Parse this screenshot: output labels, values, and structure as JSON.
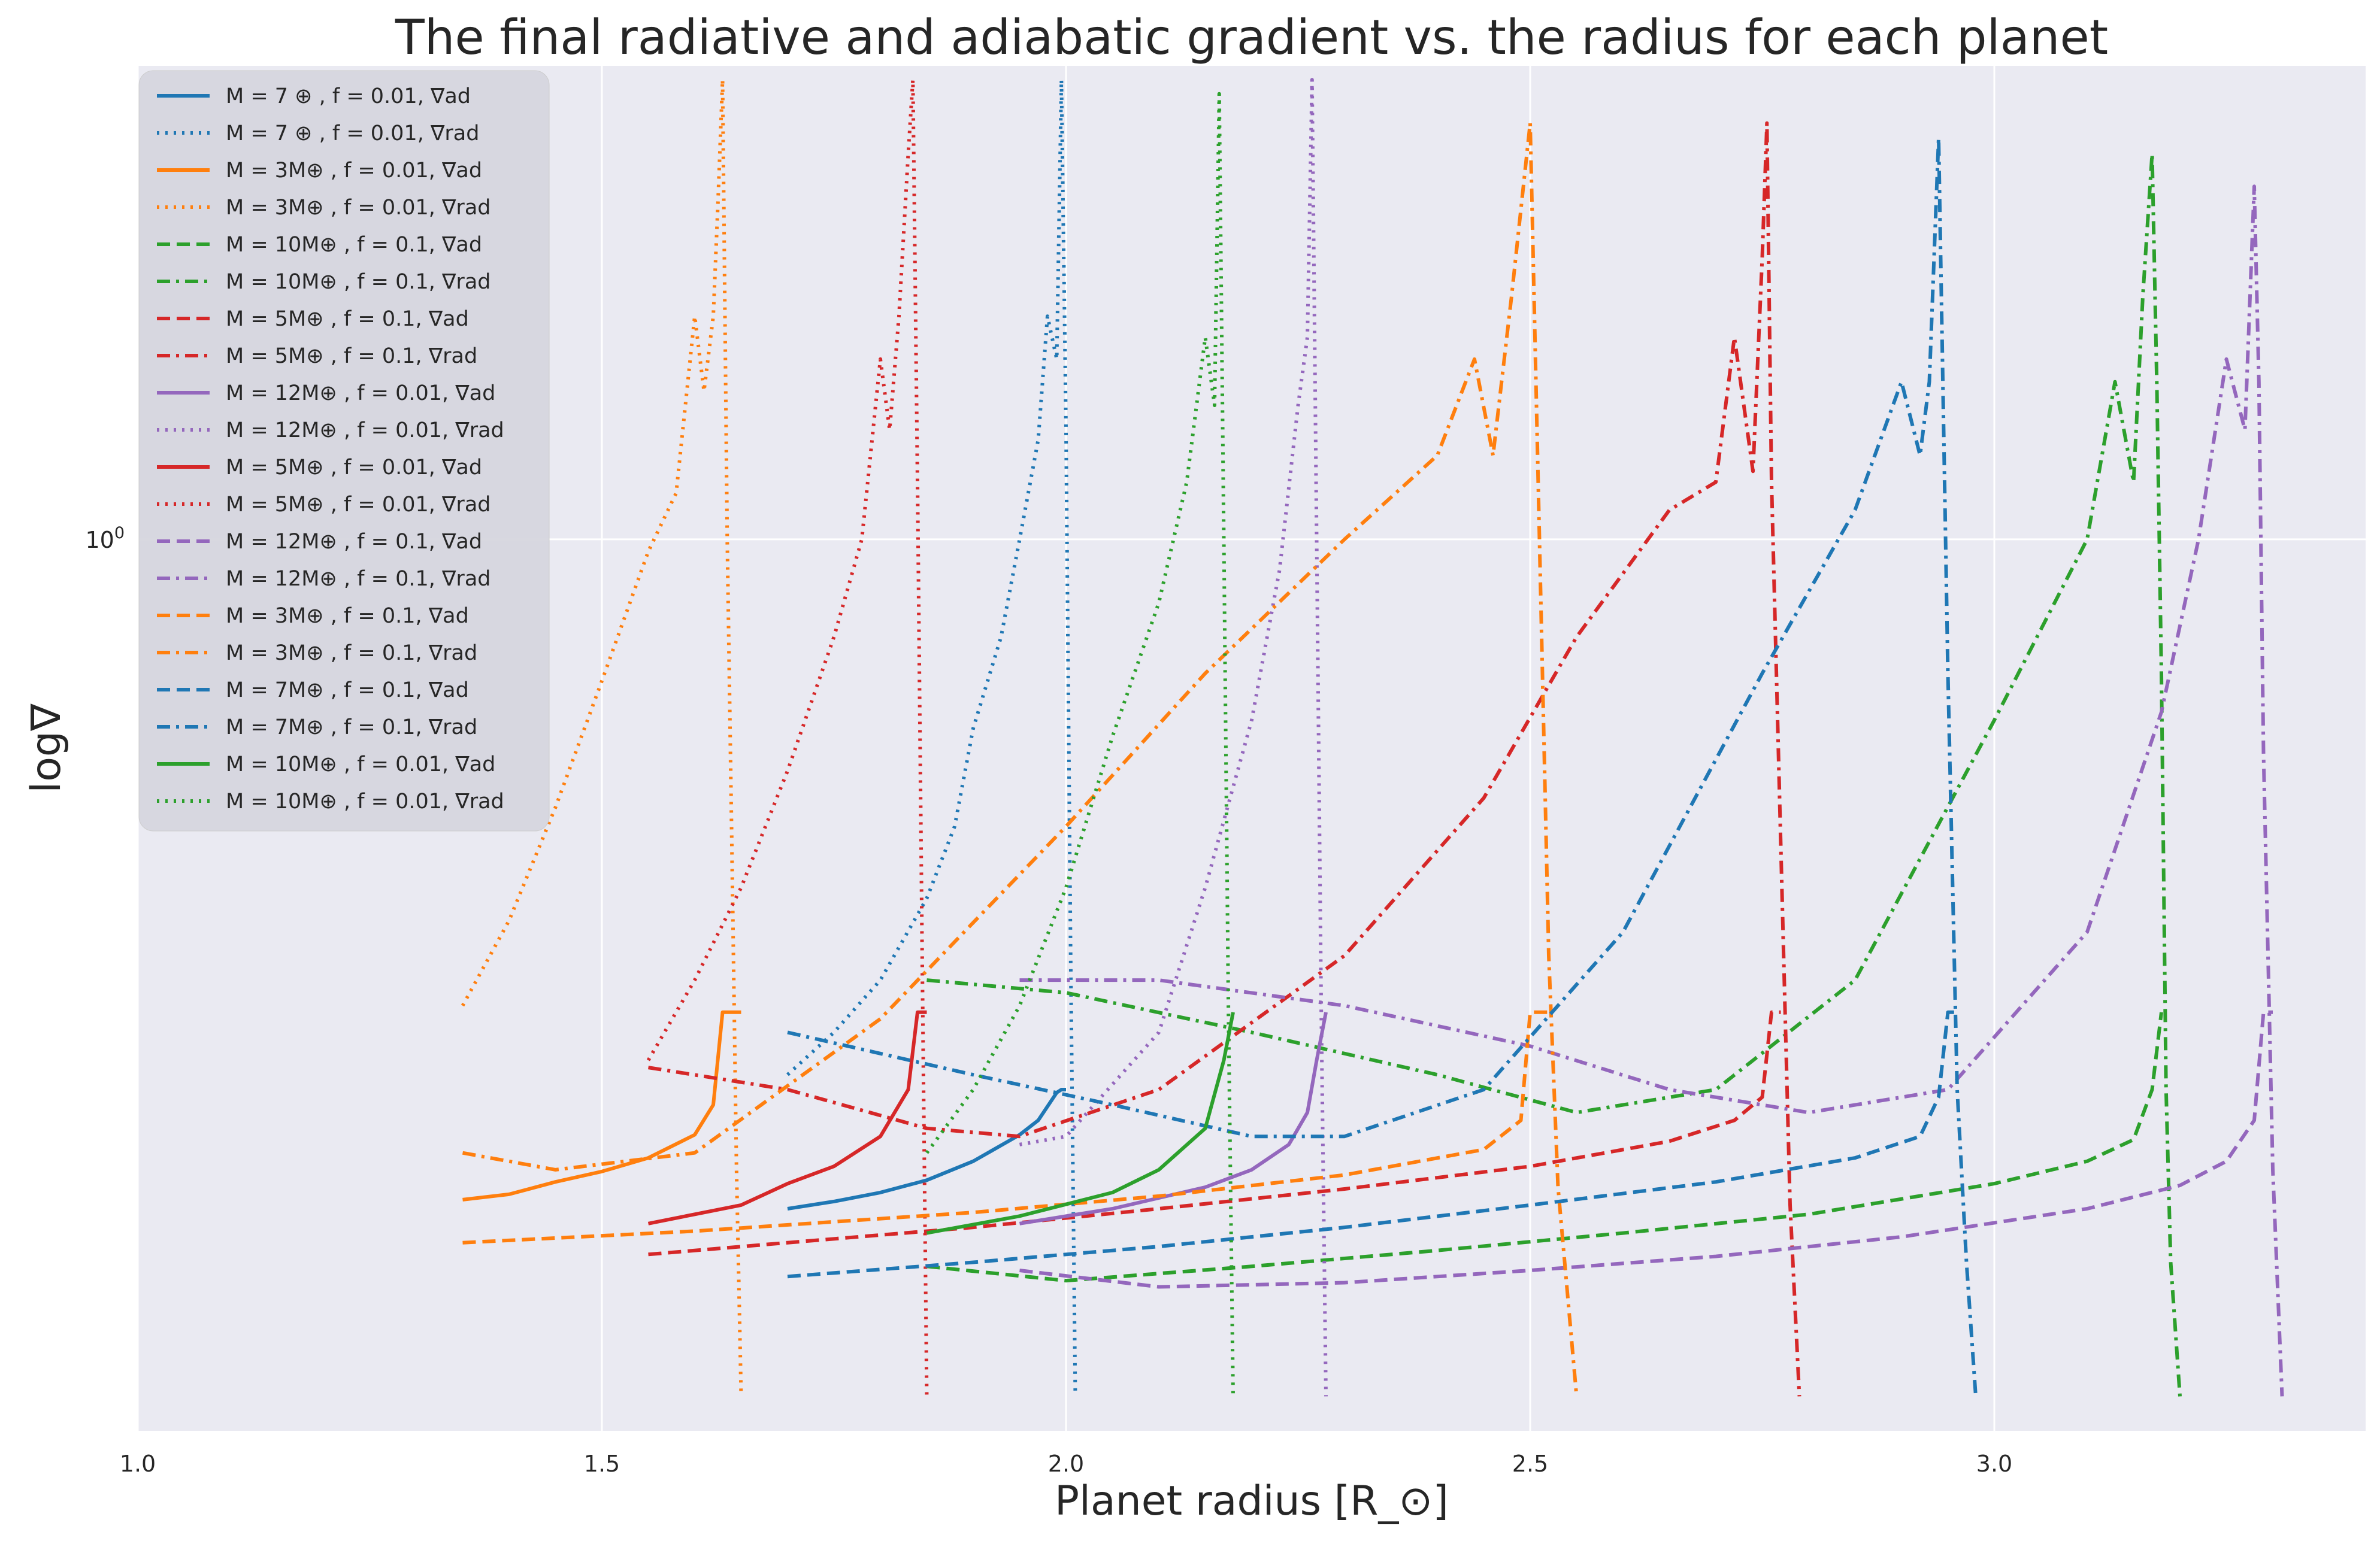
{
  "chart_data": {
    "type": "line",
    "title": "The final radiative and adiabatic gradient vs. the radius for each planet",
    "xlabel": "Planet radius [R_⊙]",
    "ylabel": "log∇",
    "xlim": [
      1.0,
      3.4
    ],
    "ylim": [
      0.2266,
      2.2
    ],
    "yscale": "log",
    "x_ticks": [
      1.0,
      1.5,
      2.0,
      2.5,
      3.0
    ],
    "x_tick_labels": [
      "1.0",
      "1.5",
      "2.0",
      "2.5",
      "3.0"
    ],
    "y_ticks": [
      1.0
    ],
    "y_tick_labels": [
      "10^0"
    ],
    "grid": true,
    "legend_placement": "top-left",
    "colors": {
      "blue": "#1f77b4",
      "orange": "#ff7f0e",
      "green": "#2ca02c",
      "red": "#d62728",
      "purple": "#9467bd"
    },
    "series": [
      {
        "name": "M = 7 ⊕ , f = 0.01, ∇ad",
        "color": "#1f77b4",
        "style": "solid",
        "x": [
          1.7,
          1.75,
          1.8,
          1.85,
          1.9,
          1.95,
          1.97,
          1.99,
          1.995,
          2.0
        ],
        "y": [
          0.328,
          0.332,
          0.337,
          0.344,
          0.355,
          0.371,
          0.38,
          0.398,
          0.4,
          0.4
        ]
      },
      {
        "name": "M = 7 ⊕ , f = 0.01, ∇rad",
        "color": "#1f77b4",
        "style": "dotted",
        "x": [
          1.7,
          1.75,
          1.8,
          1.85,
          1.88,
          1.9,
          1.93,
          1.95,
          1.97,
          1.98,
          1.99,
          1.995,
          2.0,
          2.005,
          2.01
        ],
        "y": [
          0.41,
          0.44,
          0.48,
          0.55,
          0.62,
          0.73,
          0.85,
          1.0,
          1.18,
          1.45,
          1.35,
          2.15,
          1.2,
          0.5,
          0.24
        ]
      },
      {
        "name": "M = 3M⊕ , f = 0.01, ∇ad",
        "color": "#ff7f0e",
        "style": "solid",
        "x": [
          1.35,
          1.4,
          1.45,
          1.5,
          1.55,
          1.6,
          1.62,
          1.63,
          1.65
        ],
        "y": [
          0.333,
          0.336,
          0.343,
          0.349,
          0.357,
          0.371,
          0.39,
          0.455,
          0.455
        ]
      },
      {
        "name": "M = 3M⊕ , f = 0.01, ∇rad",
        "color": "#ff7f0e",
        "style": "dotted",
        "x": [
          1.35,
          1.4,
          1.45,
          1.5,
          1.55,
          1.58,
          1.6,
          1.61,
          1.62,
          1.625,
          1.63,
          1.635,
          1.64,
          1.645,
          1.65
        ],
        "y": [
          0.46,
          0.53,
          0.64,
          0.79,
          0.98,
          1.08,
          1.45,
          1.28,
          1.45,
          1.75,
          2.15,
          1.0,
          0.6,
          0.35,
          0.24
        ]
      },
      {
        "name": "M = 10M⊕ , f = 0.1, ∇ad",
        "color": "#2ca02c",
        "style": "dashed",
        "x": [
          1.85,
          2.0,
          2.2,
          2.4,
          2.6,
          2.8,
          3.0,
          3.1,
          3.15,
          3.17,
          3.18
        ],
        "y": [
          0.298,
          0.291,
          0.298,
          0.306,
          0.315,
          0.325,
          0.342,
          0.355,
          0.368,
          0.4,
          0.455
        ]
      },
      {
        "name": "M = 10M⊕ , f = 0.1, ∇rad",
        "color": "#2ca02c",
        "style": "dashdot",
        "x": [
          1.85,
          2.0,
          2.2,
          2.4,
          2.55,
          2.7,
          2.85,
          3.0,
          3.1,
          3.13,
          3.15,
          3.16,
          3.17,
          3.175,
          3.18,
          3.185,
          3.19,
          3.2
        ],
        "y": [
          0.48,
          0.47,
          0.44,
          0.41,
          0.385,
          0.4,
          0.48,
          0.74,
          1.0,
          1.3,
          1.1,
          1.5,
          1.9,
          1.3,
          0.8,
          0.4,
          0.3,
          0.24
        ]
      },
      {
        "name": "M = 5M⊕ , f = 0.1, ∇ad",
        "color": "#d62728",
        "style": "dashed",
        "x": [
          1.55,
          1.7,
          1.9,
          2.1,
          2.3,
          2.5,
          2.65,
          2.72,
          2.75,
          2.76,
          2.77
        ],
        "y": [
          0.304,
          0.31,
          0.318,
          0.328,
          0.339,
          0.352,
          0.367,
          0.38,
          0.395,
          0.455,
          0.455
        ]
      },
      {
        "name": "M = 5M⊕ , f = 0.1, ∇rad",
        "color": "#d62728",
        "style": "dashdot",
        "x": [
          1.55,
          1.7,
          1.85,
          1.95,
          2.1,
          2.3,
          2.45,
          2.55,
          2.65,
          2.7,
          2.72,
          2.74,
          2.75,
          2.755,
          2.76,
          2.77,
          2.78,
          2.79
        ],
        "y": [
          0.415,
          0.4,
          0.375,
          0.37,
          0.4,
          0.5,
          0.65,
          0.85,
          1.05,
          1.1,
          1.4,
          1.12,
          1.6,
          2.0,
          1.1,
          0.6,
          0.33,
          0.24
        ]
      },
      {
        "name": "M = 12M⊕ , f = 0.01, ∇ad",
        "color": "#9467bd",
        "style": "solid",
        "x": [
          1.95,
          2.05,
          2.15,
          2.2,
          2.24,
          2.26,
          2.27,
          2.28
        ],
        "y": [
          0.32,
          0.328,
          0.34,
          0.35,
          0.365,
          0.385,
          0.42,
          0.455
        ]
      },
      {
        "name": "M = 12M⊕ , f = 0.01, ∇rad",
        "color": "#9467bd",
        "style": "dotted",
        "x": [
          1.95,
          2.0,
          2.1,
          2.15,
          2.2,
          2.23,
          2.25,
          2.26,
          2.265,
          2.27,
          2.275,
          2.28
        ],
        "y": [
          0.365,
          0.37,
          0.44,
          0.56,
          0.74,
          0.95,
          1.25,
          1.4,
          2.15,
          1.0,
          0.45,
          0.24
        ]
      },
      {
        "name": "M = 5M⊕ , f = 0.01, ∇ad",
        "color": "#d62728",
        "style": "solid",
        "x": [
          1.55,
          1.65,
          1.7,
          1.75,
          1.8,
          1.83,
          1.84,
          1.85
        ],
        "y": [
          0.32,
          0.33,
          0.342,
          0.352,
          0.37,
          0.4,
          0.455,
          0.455
        ]
      },
      {
        "name": "M = 5M⊕ , f = 0.01, ∇rad",
        "color": "#d62728",
        "style": "dotted",
        "x": [
          1.55,
          1.6,
          1.65,
          1.7,
          1.75,
          1.78,
          1.8,
          1.81,
          1.82,
          1.83,
          1.835,
          1.84,
          1.845,
          1.85
        ],
        "y": [
          0.42,
          0.48,
          0.56,
          0.68,
          0.85,
          1.0,
          1.35,
          1.2,
          1.45,
          1.9,
          2.15,
          1.1,
          0.5,
          0.24
        ]
      },
      {
        "name": "M = 12M⊕ , f = 0.1, ∇ad",
        "color": "#9467bd",
        "style": "dashed",
        "x": [
          1.95,
          2.1,
          2.3,
          2.5,
          2.7,
          2.9,
          3.1,
          3.2,
          3.25,
          3.28,
          3.29,
          3.3
        ],
        "y": [
          0.296,
          0.288,
          0.29,
          0.296,
          0.303,
          0.313,
          0.328,
          0.341,
          0.355,
          0.38,
          0.455,
          0.455
        ]
      },
      {
        "name": "M = 12M⊕ , f = 0.1, ∇rad",
        "color": "#9467bd",
        "style": "dashdot",
        "x": [
          1.95,
          2.1,
          2.3,
          2.5,
          2.65,
          2.8,
          2.95,
          3.1,
          3.18,
          3.22,
          3.25,
          3.27,
          3.28,
          3.285,
          3.29,
          3.3,
          3.31
        ],
        "y": [
          0.48,
          0.48,
          0.46,
          0.43,
          0.4,
          0.385,
          0.4,
          0.52,
          0.75,
          1.0,
          1.35,
          1.2,
          1.8,
          1.3,
          0.7,
          0.35,
          0.24
        ]
      },
      {
        "name": "M = 3M⊕ , f = 0.1, ∇ad",
        "color": "#ff7f0e",
        "style": "dashed",
        "x": [
          1.35,
          1.6,
          1.9,
          2.1,
          2.3,
          2.45,
          2.49,
          2.5,
          2.52
        ],
        "y": [
          0.31,
          0.316,
          0.326,
          0.335,
          0.347,
          0.362,
          0.38,
          0.455,
          0.455
        ]
      },
      {
        "name": "M = 3M⊕ , f = 0.1, ∇rad",
        "color": "#ff7f0e",
        "style": "dashdot",
        "x": [
          1.35,
          1.45,
          1.6,
          1.8,
          2.0,
          2.15,
          2.3,
          2.4,
          2.44,
          2.46,
          2.48,
          2.5,
          2.51,
          2.52,
          2.53,
          2.55
        ],
        "y": [
          0.36,
          0.35,
          0.36,
          0.45,
          0.62,
          0.8,
          1.0,
          1.15,
          1.35,
          1.15,
          1.5,
          2.0,
          1.0,
          0.5,
          0.34,
          0.24
        ]
      },
      {
        "name": "M = 7M⊕ , f = 0.1, ∇ad",
        "color": "#1f77b4",
        "style": "dashed",
        "x": [
          1.7,
          1.9,
          2.1,
          2.3,
          2.5,
          2.7,
          2.85,
          2.92,
          2.94,
          2.95,
          2.96
        ],
        "y": [
          0.293,
          0.3,
          0.308,
          0.318,
          0.33,
          0.343,
          0.357,
          0.37,
          0.395,
          0.455,
          0.455
        ]
      },
      {
        "name": "M = 7M⊕ , f = 0.1, ∇rad",
        "color": "#1f77b4",
        "style": "dashdot",
        "x": [
          1.7,
          1.9,
          2.05,
          2.2,
          2.3,
          2.45,
          2.6,
          2.75,
          2.85,
          2.9,
          2.92,
          2.93,
          2.94,
          2.95,
          2.96,
          2.97,
          2.98
        ],
        "y": [
          0.44,
          0.41,
          0.39,
          0.37,
          0.37,
          0.4,
          0.52,
          0.8,
          1.05,
          1.3,
          1.15,
          1.3,
          1.95,
          0.8,
          0.4,
          0.3,
          0.24
        ]
      },
      {
        "name": "M = 10M⊕ , f = 0.01, ∇ad",
        "color": "#2ca02c",
        "style": "solid",
        "x": [
          1.85,
          1.95,
          2.05,
          2.1,
          2.15,
          2.17,
          2.18
        ],
        "y": [
          0.315,
          0.324,
          0.337,
          0.35,
          0.375,
          0.42,
          0.455
        ]
      },
      {
        "name": "M = 10M⊕ , f = 0.01, ∇rad",
        "color": "#2ca02c",
        "style": "dotted",
        "x": [
          1.85,
          1.9,
          1.95,
          2.0,
          2.05,
          2.1,
          2.13,
          2.15,
          2.16,
          2.165,
          2.17,
          2.175,
          2.18
        ],
        "y": [
          0.36,
          0.4,
          0.46,
          0.56,
          0.72,
          0.9,
          1.1,
          1.4,
          1.25,
          2.1,
          1.0,
          0.45,
          0.24
        ]
      }
    ]
  }
}
